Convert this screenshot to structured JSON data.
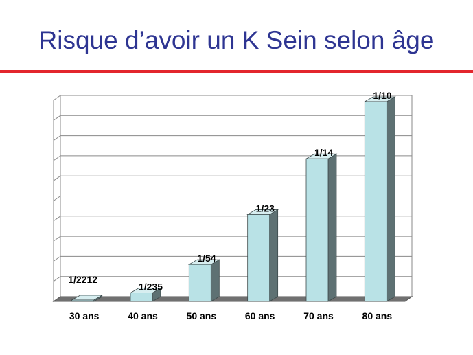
{
  "slide": {
    "title": "Risque d’avoir un K Sein selon âge",
    "rule_color": "#e3262d",
    "title_color": "#2e3592"
  },
  "chart_data": {
    "type": "bar",
    "title": "",
    "xlabel": "",
    "ylabel": "",
    "categories": [
      "30 ans",
      "40 ans",
      "50 ans",
      "60 ans",
      "70 ans",
      "80 ans"
    ],
    "values": [
      0.000452,
      0.00426,
      0.0185,
      0.0435,
      0.0714,
      0.1
    ],
    "data_labels": [
      "1/2212",
      "1/235",
      "1/54",
      "1/23",
      "1/14",
      "1/10"
    ],
    "ylim": [
      0,
      0.1
    ],
    "grid": true,
    "legend": "none",
    "bar_color": "#b9e2e6",
    "bar_side_color": "#5e7173",
    "floor_color": "#707070"
  }
}
